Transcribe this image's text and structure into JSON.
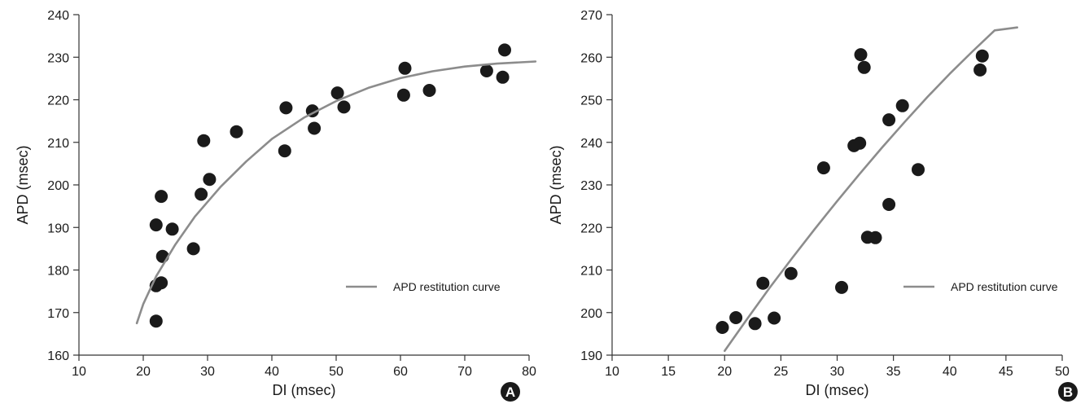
{
  "chart_data": [
    {
      "type": "scatter",
      "panel_label": "A",
      "xlabel": "DI (msec)",
      "ylabel": "APD (msec)",
      "xlim": [
        10,
        80
      ],
      "ylim": [
        160,
        240
      ],
      "xticks": [
        10,
        20,
        30,
        40,
        50,
        60,
        70,
        80
      ],
      "yticks": [
        160,
        170,
        180,
        190,
        200,
        210,
        220,
        230,
        240
      ],
      "legend_position": "bottom-right",
      "series": [
        {
          "name": "",
          "kind": "points",
          "points": [
            [
              22.0,
              168.0
            ],
            [
              22.0,
              176.3
            ],
            [
              22.8,
              177.0
            ],
            [
              22.0,
              190.6
            ],
            [
              22.8,
              197.3
            ],
            [
              23.0,
              183.2
            ],
            [
              24.5,
              189.6
            ],
            [
              27.8,
              185.0
            ],
            [
              29.0,
              197.8
            ],
            [
              29.4,
              210.4
            ],
            [
              30.3,
              201.3
            ],
            [
              34.5,
              212.5
            ],
            [
              42.0,
              208.0
            ],
            [
              42.2,
              218.1
            ],
            [
              46.3,
              217.4
            ],
            [
              46.6,
              213.3
            ],
            [
              50.2,
              221.6
            ],
            [
              51.2,
              218.3
            ],
            [
              60.5,
              221.1
            ],
            [
              60.7,
              227.4
            ],
            [
              64.5,
              222.2
            ],
            [
              73.4,
              226.8
            ],
            [
              75.9,
              225.3
            ],
            [
              76.2,
              231.7
            ]
          ]
        },
        {
          "name": "APD restitution curve",
          "kind": "line",
          "points": [
            [
              19.0,
              167.5
            ],
            [
              20.0,
              172.0
            ],
            [
              22.0,
              178.5
            ],
            [
              25.0,
              186.0
            ],
            [
              28.0,
              192.5
            ],
            [
              32.0,
              199.5
            ],
            [
              36.0,
              205.5
            ],
            [
              40.0,
              210.8
            ],
            [
              45.0,
              215.8
            ],
            [
              50.0,
              219.7
            ],
            [
              55.0,
              222.8
            ],
            [
              60.0,
              225.1
            ],
            [
              65.0,
              226.7
            ],
            [
              70.0,
              227.8
            ],
            [
              75.0,
              228.5
            ],
            [
              81.0,
              229.0
            ]
          ]
        }
      ]
    },
    {
      "type": "scatter",
      "panel_label": "B",
      "xlabel": "DI (msec)",
      "ylabel": "APD (msec)",
      "xlim": [
        10,
        50
      ],
      "ylim": [
        190,
        270
      ],
      "xticks": [
        10,
        15,
        20,
        25,
        30,
        35,
        40,
        45,
        50
      ],
      "yticks": [
        190,
        200,
        210,
        220,
        230,
        240,
        250,
        260,
        270
      ],
      "legend_position": "bottom-right",
      "series": [
        {
          "name": "",
          "kind": "points",
          "points": [
            [
              19.8,
              196.5
            ],
            [
              21.0,
              198.8
            ],
            [
              22.7,
              197.4
            ],
            [
              23.4,
              206.9
            ],
            [
              24.4,
              198.7
            ],
            [
              25.9,
              209.2
            ],
            [
              28.8,
              234.0
            ],
            [
              30.4,
              205.9
            ],
            [
              31.5,
              239.2
            ],
            [
              32.0,
              239.8
            ],
            [
              32.1,
              260.6
            ],
            [
              32.4,
              257.6
            ],
            [
              32.7,
              217.7
            ],
            [
              33.4,
              217.6
            ],
            [
              34.6,
              245.3
            ],
            [
              34.6,
              225.4
            ],
            [
              35.8,
              248.6
            ],
            [
              37.2,
              233.6
            ],
            [
              42.7,
              257.0
            ],
            [
              42.9,
              260.3
            ]
          ]
        },
        {
          "name": "APD restitution curve",
          "kind": "line",
          "points": [
            [
              20.0,
              191.0
            ],
            [
              22.0,
              198.5
            ],
            [
              24.0,
              205.8
            ],
            [
              26.0,
              212.8
            ],
            [
              28.0,
              219.6
            ],
            [
              30.0,
              226.2
            ],
            [
              32.0,
              232.6
            ],
            [
              34.0,
              238.8
            ],
            [
              36.0,
              244.8
            ],
            [
              38.0,
              250.6
            ],
            [
              40.0,
              256.1
            ],
            [
              42.0,
              261.3
            ],
            [
              44.0,
              266.3
            ],
            [
              46.0,
              267.0
            ]
          ]
        }
      ]
    }
  ],
  "colors": {
    "marker": "#1a1a1a",
    "curve": "#8c8c8c",
    "axis": "#333333",
    "badge": "#1a1a1a"
  }
}
